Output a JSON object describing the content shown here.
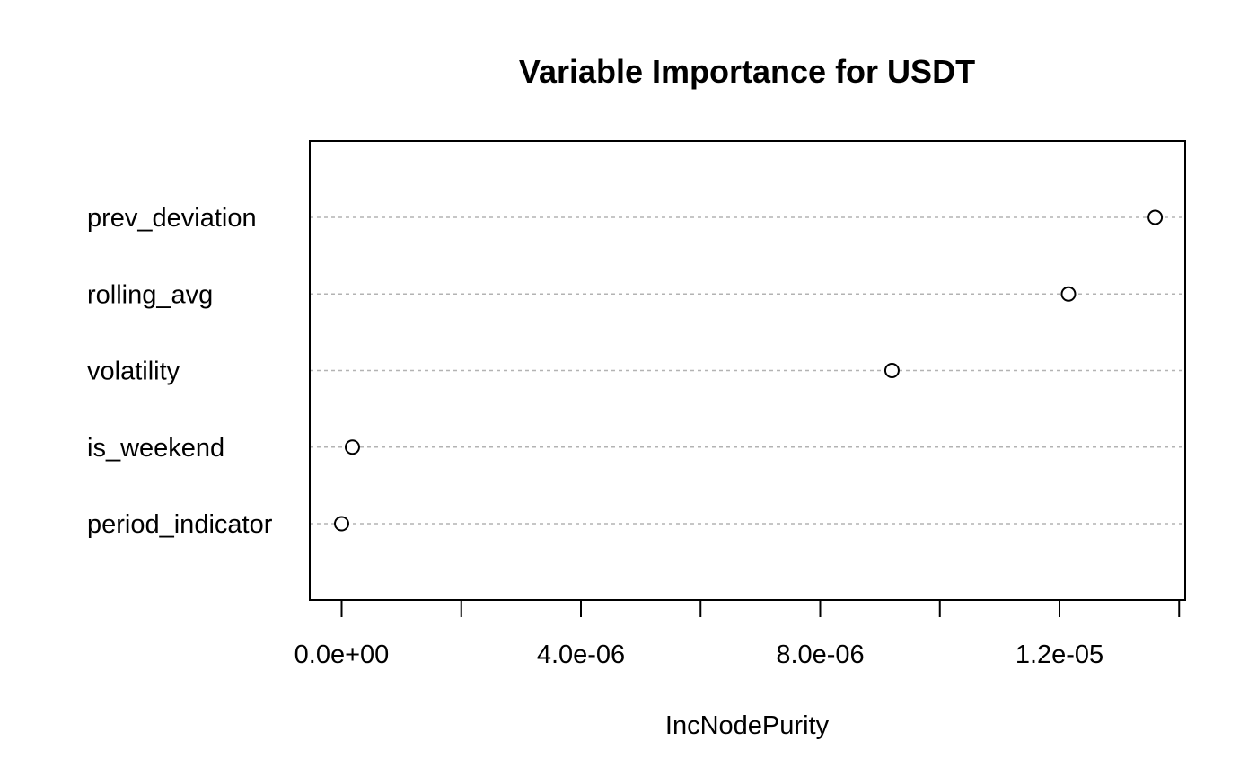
{
  "chart_data": {
    "type": "scatter",
    "title": "Variable Importance for USDT",
    "xlabel": "IncNodePurity",
    "ylabel": "",
    "categories": [
      "prev_deviation",
      "rolling_avg",
      "volatility",
      "is_weekend",
      "period_indicator"
    ],
    "values": [
      1.36e-05,
      1.215e-05,
      9.2e-06,
      1.8e-07,
      0
    ],
    "xlim": [
      -5.4e-07,
      1.41e-05
    ],
    "xticks": [
      0,
      2e-06,
      4e-06,
      6e-06,
      8e-06,
      1e-05,
      1.2e-05,
      1.4e-05
    ],
    "xtick_labels": [
      "0.0e+00",
      "",
      "4.0e-06",
      "",
      "8.0e-06",
      "",
      "1.2e-05",
      ""
    ],
    "grid": false,
    "legend": "none"
  }
}
